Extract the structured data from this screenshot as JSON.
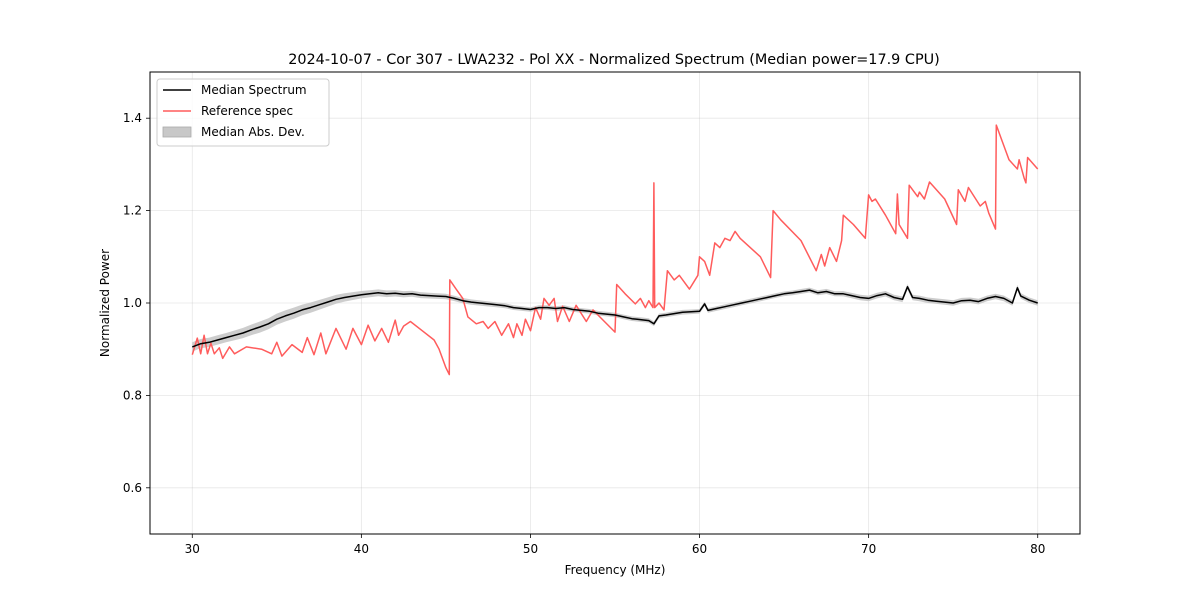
{
  "chart_data": {
    "type": "line",
    "title": "2024-10-07 - Cor 307 - LWA232 - Pol XX - Normalized Spectrum (Median power=17.9 CPU)",
    "xlabel": "Frequency (MHz)",
    "ylabel": "Normalized Power",
    "xlim": [
      27.5,
      82.5
    ],
    "ylim": [
      0.5,
      1.5
    ],
    "xticks": [
      30,
      40,
      50,
      60,
      70,
      80
    ],
    "xtick_labels": [
      "30",
      "40",
      "50",
      "60",
      "70",
      "80"
    ],
    "yticks": [
      0.6,
      0.8,
      1.0,
      1.2,
      1.4
    ],
    "ytick_labels": [
      "0.6",
      "0.8",
      "1.0",
      "1.2",
      "1.4"
    ],
    "grid": true,
    "legend_position": "top-left",
    "legend": [
      {
        "label": "Median Spectrum",
        "kind": "line",
        "color": "#000000"
      },
      {
        "label": "Reference spec",
        "kind": "line",
        "color": "#ff5c5c"
      },
      {
        "label": "Median Abs. Dev.",
        "kind": "band",
        "color": "#c8c8c8"
      }
    ],
    "series": [
      {
        "name": "Median Spectrum",
        "color": "#000000",
        "x": [
          30.0,
          30.5,
          31.0,
          31.5,
          32.0,
          32.5,
          33.0,
          33.5,
          34.0,
          34.5,
          35.0,
          35.5,
          36.0,
          36.5,
          37.0,
          37.5,
          38.0,
          38.5,
          39.0,
          39.5,
          40.0,
          40.5,
          41.0,
          41.5,
          42.0,
          42.5,
          43.0,
          43.5,
          44.0,
          44.5,
          45.0,
          45.5,
          46.0,
          46.5,
          47.0,
          47.5,
          48.0,
          48.5,
          49.0,
          49.5,
          50.0,
          50.5,
          51.0,
          51.5,
          52.0,
          52.5,
          53.0,
          53.5,
          54.0,
          54.5,
          55.0,
          55.5,
          56.0,
          56.5,
          57.0,
          57.3,
          57.6,
          58.0,
          58.5,
          59.0,
          59.5,
          60.0,
          60.3,
          60.5,
          61.0,
          61.5,
          62.0,
          62.5,
          63.0,
          63.5,
          64.0,
          64.5,
          65.0,
          65.5,
          66.0,
          66.5,
          67.0,
          67.5,
          68.0,
          68.5,
          69.0,
          69.5,
          70.0,
          70.5,
          71.0,
          71.5,
          72.0,
          72.3,
          72.6,
          73.0,
          73.5,
          74.0,
          74.5,
          75.0,
          75.5,
          76.0,
          76.5,
          77.0,
          77.5,
          78.0,
          78.5,
          78.8,
          79.0,
          79.5,
          80.0
        ],
        "y": [
          0.905,
          0.912,
          0.915,
          0.92,
          0.925,
          0.93,
          0.935,
          0.942,
          0.948,
          0.955,
          0.965,
          0.972,
          0.978,
          0.985,
          0.99,
          0.996,
          1.002,
          1.008,
          1.012,
          1.015,
          1.018,
          1.02,
          1.022,
          1.02,
          1.021,
          1.019,
          1.02,
          1.017,
          1.016,
          1.015,
          1.014,
          1.01,
          1.005,
          1.002,
          1.0,
          0.998,
          0.996,
          0.994,
          0.99,
          0.988,
          0.986,
          0.99,
          0.99,
          0.988,
          0.99,
          0.986,
          0.984,
          0.982,
          0.978,
          0.976,
          0.974,
          0.97,
          0.966,
          0.964,
          0.962,
          0.955,
          0.972,
          0.974,
          0.977,
          0.98,
          0.981,
          0.982,
          0.998,
          0.984,
          0.988,
          0.992,
          0.996,
          1.0,
          1.004,
          1.008,
          1.012,
          1.016,
          1.02,
          1.022,
          1.025,
          1.028,
          1.022,
          1.025,
          1.02,
          1.02,
          1.016,
          1.012,
          1.01,
          1.016,
          1.02,
          1.012,
          1.008,
          1.035,
          1.012,
          1.01,
          1.006,
          1.004,
          1.002,
          1.0,
          1.005,
          1.006,
          1.003,
          1.01,
          1.014,
          1.01,
          1.0,
          1.033,
          1.015,
          1.006,
          1.0
        ]
      },
      {
        "name": "Reference spec",
        "color": "#ff5c5c",
        "x": [
          30.0,
          30.3,
          30.5,
          30.7,
          30.9,
          31.1,
          31.3,
          31.6,
          31.8,
          32.2,
          32.5,
          33.2,
          34.1,
          34.7,
          35.0,
          35.3,
          35.9,
          36.5,
          36.8,
          37.2,
          37.6,
          37.9,
          38.5,
          39.1,
          39.5,
          40.0,
          40.4,
          40.8,
          41.2,
          41.6,
          42.0,
          42.2,
          42.5,
          42.9,
          43.6,
          44.3,
          44.6,
          45.0,
          45.2,
          45.23,
          45.6,
          46.0,
          46.3,
          46.8,
          47.2,
          47.5,
          47.9,
          48.3,
          48.7,
          49.0,
          49.2,
          49.5,
          49.7,
          50.0,
          50.3,
          50.6,
          50.8,
          51.1,
          51.4,
          51.6,
          51.9,
          52.3,
          52.7,
          53.3,
          53.7,
          54.1,
          55.0,
          55.1,
          55.6,
          56.2,
          56.5,
          56.8,
          57.0,
          57.25,
          57.3,
          57.35,
          57.6,
          57.9,
          58.1,
          58.5,
          58.8,
          59.4,
          59.9,
          60.0,
          60.3,
          60.6,
          60.9,
          61.2,
          61.5,
          61.8,
          62.1,
          62.4,
          63.6,
          64.2,
          64.35,
          64.8,
          66.0,
          66.9,
          67.2,
          67.4,
          67.7,
          68.1,
          68.4,
          68.5,
          69.1,
          69.8,
          70.0,
          70.2,
          70.4,
          71.0,
          71.6,
          71.7,
          71.8,
          72.3,
          72.4,
          72.9,
          73.0,
          73.3,
          73.6,
          74.5,
          75.2,
          75.3,
          75.7,
          75.9,
          76.6,
          76.9,
          77.1,
          77.5,
          77.55,
          77.9,
          78.3,
          78.8,
          78.9,
          79.2,
          79.3,
          79.4,
          80.0
        ],
        "y": [
          0.888,
          0.924,
          0.89,
          0.93,
          0.89,
          0.913,
          0.89,
          0.903,
          0.88,
          0.905,
          0.89,
          0.905,
          0.9,
          0.89,
          0.915,
          0.885,
          0.91,
          0.893,
          0.925,
          0.888,
          0.935,
          0.89,
          0.945,
          0.9,
          0.945,
          0.91,
          0.952,
          0.918,
          0.945,
          0.915,
          0.963,
          0.93,
          0.95,
          0.96,
          0.94,
          0.92,
          0.9,
          0.86,
          0.845,
          1.05,
          1.03,
          1.01,
          0.97,
          0.955,
          0.96,
          0.945,
          0.96,
          0.93,
          0.955,
          0.925,
          0.955,
          0.93,
          0.965,
          0.94,
          0.99,
          0.965,
          1.01,
          0.995,
          1.01,
          0.96,
          0.993,
          0.96,
          0.995,
          0.96,
          0.985,
          0.97,
          0.937,
          1.04,
          1.02,
          0.998,
          1.01,
          0.99,
          1.005,
          0.99,
          1.26,
          0.99,
          1.0,
          0.985,
          1.07,
          1.05,
          1.06,
          1.03,
          1.06,
          1.1,
          1.09,
          1.06,
          1.13,
          1.12,
          1.14,
          1.135,
          1.155,
          1.14,
          1.1,
          1.055,
          1.2,
          1.18,
          1.135,
          1.07,
          1.105,
          1.08,
          1.12,
          1.09,
          1.135,
          1.19,
          1.17,
          1.14,
          1.234,
          1.22,
          1.225,
          1.19,
          1.15,
          1.236,
          1.17,
          1.14,
          1.255,
          1.23,
          1.24,
          1.225,
          1.262,
          1.225,
          1.17,
          1.245,
          1.22,
          1.25,
          1.21,
          1.22,
          1.195,
          1.16,
          1.385,
          1.35,
          1.31,
          1.29,
          1.31,
          1.27,
          1.26,
          1.315,
          1.29
        ]
      }
    ],
    "band": {
      "name": "Median Abs. Dev.",
      "color": "#c8c8c8",
      "x": [
        30.0,
        32.0,
        34.0,
        36.0,
        38.0,
        40.0,
        42.0,
        45.0,
        50.0,
        55.0,
        60.0,
        65.0,
        70.0,
        75.0,
        80.0
      ],
      "halfwidth": [
        0.01,
        0.01,
        0.012,
        0.012,
        0.01,
        0.008,
        0.007,
        0.006,
        0.005,
        0.005,
        0.005,
        0.005,
        0.006,
        0.006,
        0.006
      ]
    }
  }
}
